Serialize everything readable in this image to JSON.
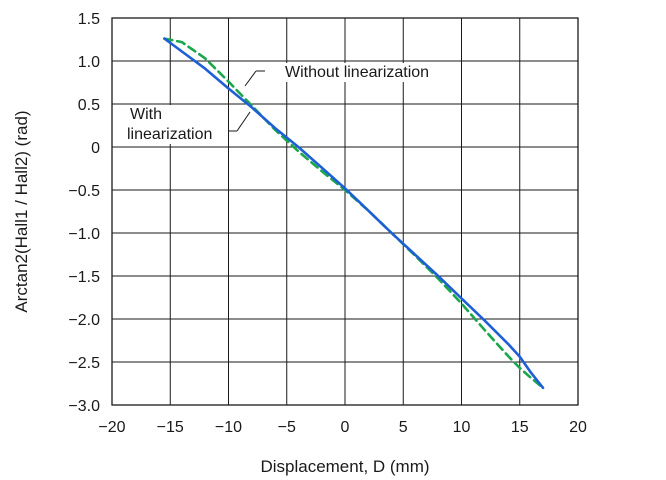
{
  "chart_data": {
    "type": "line",
    "xlabel": "Displacement, D (mm)",
    "ylabel": "Arctan2(Hall1 / Hall2) (rad)",
    "xlim": [
      -20,
      20
    ],
    "ylim": [
      -3.0,
      1.5
    ],
    "xticks": [
      -20,
      -15,
      -10,
      -5,
      0,
      5,
      10,
      15,
      20
    ],
    "yticks": [
      1.5,
      1.0,
      0.5,
      0,
      -0.5,
      -1.0,
      -1.5,
      -2.0,
      -2.5,
      -3.0
    ],
    "xtick_labels": [
      "−20",
      "−15",
      "−10",
      "−5",
      "0",
      "5",
      "10",
      "15",
      "20"
    ],
    "ytick_labels": [
      "1.5",
      "1.0",
      "0.5",
      "0",
      "−0.5",
      "−1.0",
      "−1.5",
      "−2.0",
      "−2.5",
      "−3.0"
    ],
    "grid": true,
    "series": [
      {
        "label_line1": "With",
        "label_line2": "linearization",
        "color": "#1f5fd6",
        "style": "solid",
        "x": [
          -15.5,
          -14,
          -12,
          -10,
          -8,
          -6,
          -4,
          -2,
          0,
          2,
          4,
          6,
          8,
          10,
          12,
          14,
          15,
          16,
          17
        ],
        "y": [
          1.26,
          1.11,
          0.91,
          0.68,
          0.46,
          0.22,
          0.0,
          -0.24,
          -0.48,
          -0.74,
          -1.0,
          -1.25,
          -1.5,
          -1.76,
          -2.02,
          -2.29,
          -2.44,
          -2.63,
          -2.8
        ]
      },
      {
        "label": "Without linearization",
        "color": "#1aa64a",
        "style": "dashed",
        "x": [
          -15.5,
          -14,
          -12,
          -10,
          -8,
          -6,
          -4,
          -2,
          0,
          2,
          4,
          6,
          8,
          10,
          12,
          14,
          15,
          16,
          17
        ],
        "y": [
          1.26,
          1.22,
          1.03,
          0.76,
          0.48,
          0.2,
          -0.05,
          -0.28,
          -0.5,
          -0.74,
          -1.0,
          -1.26,
          -1.53,
          -1.82,
          -2.13,
          -2.43,
          -2.57,
          -2.69,
          -2.8
        ]
      }
    ]
  }
}
